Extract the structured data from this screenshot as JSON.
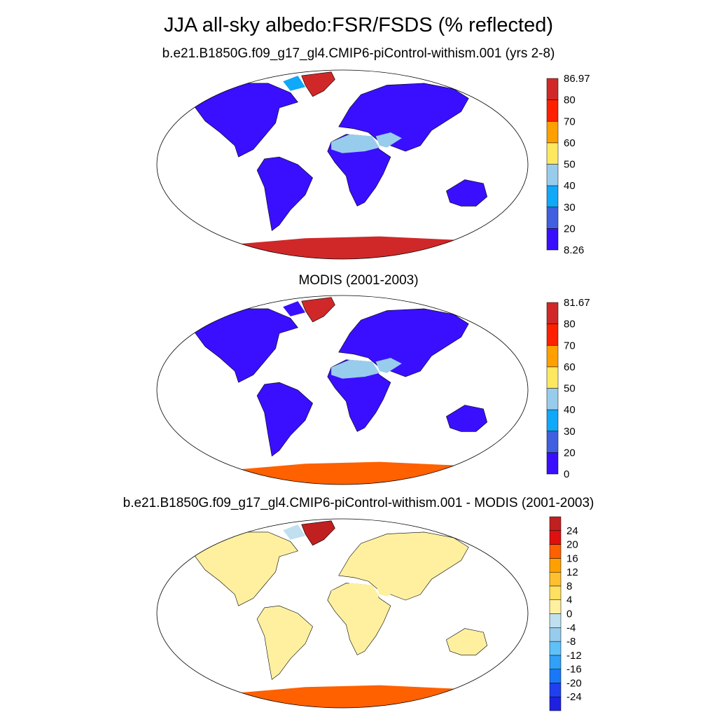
{
  "figure": {
    "title": "JJA all-sky albedo:FSR/FSDS (% reflected)"
  },
  "panels": [
    {
      "subtitle": "b.e21.B1850G.f09_g17_gl4.CMIP6-piControl-withism.001 (yrs 2-8)",
      "colorbar": {
        "colors": [
          "#3a0fff",
          "#4060e0",
          "#10a8f8",
          "#98ccec",
          "#ffe860",
          "#ffa000",
          "#ff2000",
          "#d02828"
        ],
        "labels": [
          "8.26",
          "20",
          "30",
          "40",
          "50",
          "60",
          "70",
          "80",
          "86.97"
        ]
      },
      "fields": {
        "land": "#3a0fff",
        "desert": "#98ccec",
        "greenland": "#d02828",
        "antarctica": "#d02828",
        "arctic": "#10a8f8"
      }
    },
    {
      "subtitle": "MODIS (2001-2003)",
      "colorbar": {
        "colors": [
          "#3a0fff",
          "#4060e0",
          "#10a8f8",
          "#98ccec",
          "#ffe860",
          "#ffa000",
          "#ff2000",
          "#d02828"
        ],
        "labels": [
          "0",
          "20",
          "30",
          "40",
          "50",
          "60",
          "70",
          "80",
          "81.67"
        ]
      },
      "fields": {
        "land": "#3a0fff",
        "desert": "#98ccec",
        "greenland": "#d02828",
        "antarctica": "#ff6000",
        "arctic": "#3a0fff"
      }
    },
    {
      "subtitle": "b.e21.B1850G.f09_g17_gl4.CMIP6-piControl-withism.001 - MODIS (2001-2003)",
      "colorbar": {
        "colors": [
          "#2020e0",
          "#2040f0",
          "#1878f8",
          "#30a0f8",
          "#60c0f8",
          "#98ccec",
          "#c0e0f0",
          "#fff0a0",
          "#ffe060",
          "#ffc030",
          "#ffa000",
          "#ff6000",
          "#e01010",
          "#c02020"
        ],
        "labels": [
          "-24",
          "-20",
          "-16",
          "-12",
          "-8",
          "-4",
          "0",
          "4",
          "8",
          "12",
          "16",
          "20",
          "24"
        ]
      },
      "fields": {
        "land": "#fff0a0",
        "desert": "#fff0a0",
        "greenland": "#c02020",
        "antarctica": "#ff6000",
        "arctic": "#c0e0f0"
      }
    }
  ]
}
